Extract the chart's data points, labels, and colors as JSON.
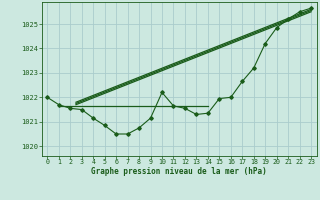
{
  "background_color": "#cce8e0",
  "grid_color": "#aacccc",
  "line_color": "#1a5c1a",
  "text_color": "#1a5c1a",
  "xlabel": "Graphe pression niveau de la mer (hPa)",
  "xlim": [
    -0.5,
    23.5
  ],
  "ylim": [
    1019.6,
    1025.9
  ],
  "yticks": [
    1020,
    1021,
    1022,
    1023,
    1024,
    1025
  ],
  "xticks": [
    0,
    1,
    2,
    3,
    4,
    5,
    6,
    7,
    8,
    9,
    10,
    11,
    12,
    13,
    14,
    15,
    16,
    17,
    18,
    19,
    20,
    21,
    22,
    23
  ],
  "main_data_x": [
    0,
    1,
    2,
    3,
    4,
    5,
    6,
    7,
    8,
    9,
    10,
    11,
    12,
    13,
    14,
    15,
    16,
    17,
    18,
    19,
    20,
    21,
    22,
    23
  ],
  "main_data_y": [
    1022.0,
    1021.7,
    1021.55,
    1021.5,
    1021.15,
    1020.85,
    1020.5,
    1020.5,
    1020.75,
    1021.15,
    1022.2,
    1021.65,
    1021.55,
    1021.3,
    1021.35,
    1021.95,
    1022.0,
    1022.65,
    1023.2,
    1024.2,
    1024.85,
    1025.2,
    1025.5,
    1025.65
  ],
  "trend1_x": [
    2.5,
    23
  ],
  "trend1_y": [
    1021.75,
    1025.55
  ],
  "trend2_x": [
    2.5,
    23
  ],
  "trend2_y": [
    1021.8,
    1025.6
  ],
  "trend3_x": [
    2.5,
    23
  ],
  "trend3_y": [
    1021.7,
    1025.5
  ],
  "flat_line_x": [
    1.0,
    14.0
  ],
  "flat_line_y": [
    1021.65,
    1021.65
  ],
  "figsize": [
    3.2,
    2.0
  ],
  "dpi": 100
}
